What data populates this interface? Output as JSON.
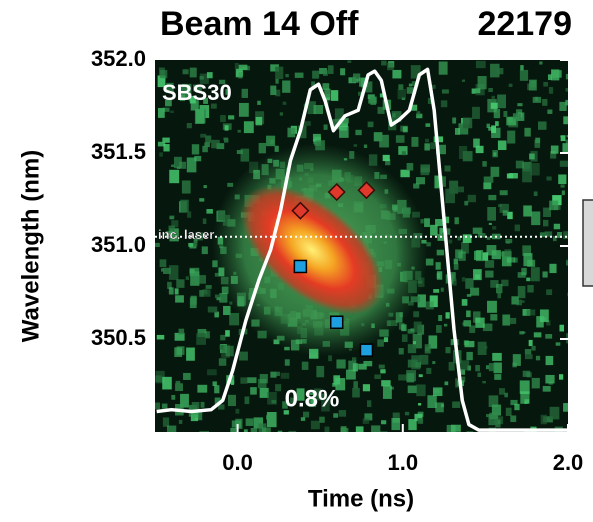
{
  "chart_data": {
    "type": "scatter",
    "title": "Beam 14 Off",
    "subtitle": "22179",
    "x_label": "Time (ns)",
    "y_label": "Wavelength (nm)",
    "annotations": [
      "SBS30",
      "0.8%"
    ],
    "reference_line": {
      "label": "inc. laser",
      "value": 351.05
    },
    "xlim": [
      -0.5,
      2.0
    ],
    "xticks": [
      {
        "value": 0,
        "label": "0.0"
      },
      {
        "value": 1,
        "label": "1.0"
      },
      {
        "value": 2,
        "label": "2.0"
      }
    ],
    "ylim": [
      350.0,
      352.0
    ],
    "yticks": [
      350.5,
      {
        "value": 351,
        "label": "351.0"
      },
      351.5,
      {
        "value": 352,
        "label": "352.0"
      }
    ],
    "series": [
      {
        "type": "line",
        "color": "#ffffff",
        "x": [
          -0.49,
          -0.4,
          -0.28,
          -0.16,
          -0.09,
          -0.03,
          0.05,
          0.13,
          0.2,
          0.26,
          0.32,
          0.38,
          0.44,
          0.49,
          0.53,
          0.58,
          0.65,
          0.73,
          0.79,
          0.83,
          0.87,
          0.93,
          0.98,
          1.04,
          1.1,
          1.15,
          1.19,
          1.25,
          1.31,
          1.36,
          1.4,
          1.46,
          2.0
        ],
        "values": [
          350.11,
          350.12,
          350.11,
          350.12,
          350.17,
          350.33,
          350.6,
          350.82,
          350.98,
          351.19,
          351.46,
          351.62,
          351.84,
          351.87,
          351.78,
          351.62,
          351.7,
          351.73,
          351.92,
          351.94,
          351.89,
          351.65,
          351.68,
          351.73,
          351.92,
          351.95,
          351.73,
          351.14,
          350.55,
          350.17,
          350.04,
          350.01,
          350.01
        ]
      },
      {
        "type": "diamond",
        "color": "#e0392b",
        "x": [
          0.38,
          0.6,
          0.78
        ],
        "values": [
          351.19,
          351.29,
          351.3
        ]
      },
      {
        "type": "square",
        "color": "#1e9fe0",
        "x": [
          0.38,
          0.6,
          0.78
        ],
        "values": [
          350.89,
          350.59,
          350.44
        ]
      }
    ]
  }
}
